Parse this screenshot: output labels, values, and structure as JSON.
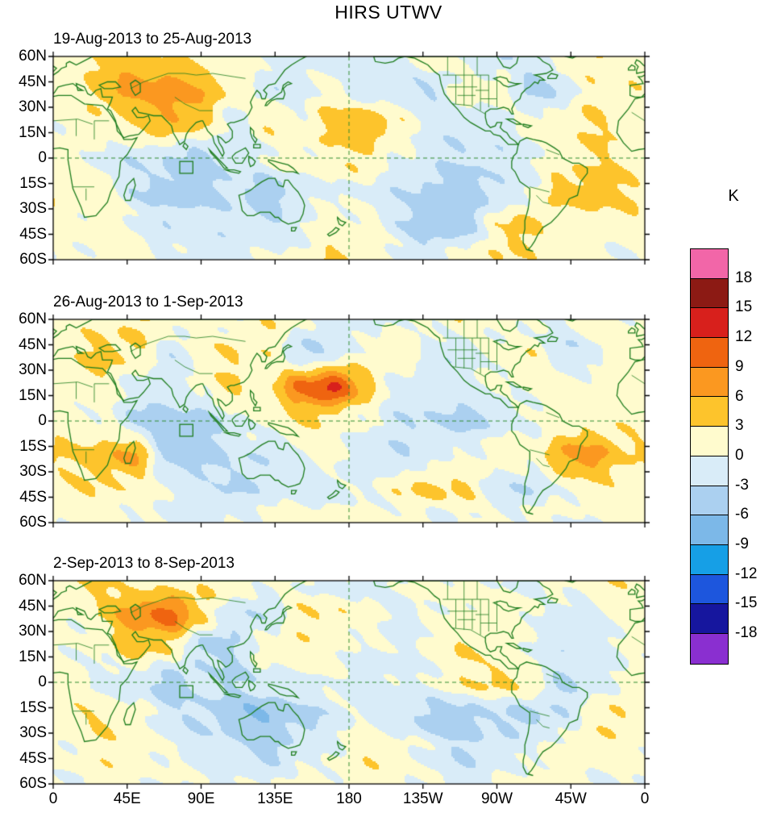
{
  "title": "HIRS UTWV",
  "colorbar": {
    "label": "K",
    "tick_labels": [
      "18",
      "15",
      "12",
      "9",
      "6",
      "3",
      "0",
      "-3",
      "-6",
      "-9",
      "-12",
      "-15",
      "-18"
    ]
  },
  "chart_data": {
    "type": "heatmap",
    "subtype": "filled-contour-anomaly-maps",
    "title": "HIRS UTWV",
    "units": "K",
    "projection": "cylindrical equidistant, 60S-60N, 0E-360E",
    "x_ticks": [
      "0",
      "45E",
      "90E",
      "135E",
      "180",
      "135W",
      "90W",
      "45W",
      "0"
    ],
    "y_ticks": [
      "60N",
      "45N",
      "30N",
      "15N",
      "0",
      "15S",
      "30S",
      "45S",
      "60S"
    ],
    "levels": [
      -18,
      -15,
      -12,
      -9,
      -6,
      -3,
      0,
      3,
      6,
      9,
      12,
      15,
      18
    ],
    "colors_low_to_high": [
      "#8a2fd0",
      "#16169e",
      "#1d56dd",
      "#169fe6",
      "#7cb8e8",
      "#abd0f0",
      "#d9ecf8",
      "#fffbce",
      "#fdc42c",
      "#fb9820",
      "#ef6410",
      "#d8201c",
      "#8c1a14",
      "#f266a8"
    ],
    "coast_color": "#1e7d1e",
    "reference_lines": {
      "equator_dashed": true,
      "dateline_dashed": true
    },
    "roi_box": {
      "lon_min": 77,
      "lon_max": 85,
      "lat_min": -9,
      "lat_max": -2
    },
    "lon_grid": [
      10,
      30,
      50,
      70,
      90,
      110,
      130,
      150,
      170,
      190,
      210,
      230,
      250,
      270,
      290,
      310,
      330,
      350
    ],
    "lat_grid": [
      60,
      40,
      20,
      0,
      -20,
      -40,
      -60
    ],
    "panels": [
      {
        "title": "19-Aug-2013 to 25-Aug-2013",
        "values": [
          [
            2,
            4,
            5,
            3,
            2,
            1,
            0,
            -1,
            -2,
            -2,
            -1,
            2,
            0,
            -3,
            -2,
            2,
            3,
            1
          ],
          [
            1,
            5,
            7,
            8,
            6,
            2,
            -2,
            -1,
            1,
            -1,
            -2,
            -3,
            1,
            2,
            -4,
            -2,
            2,
            2
          ],
          [
            0,
            2,
            3,
            6,
            3,
            -1,
            2,
            1,
            4,
            6,
            2,
            -1,
            -2,
            -1,
            1,
            2,
            3,
            2
          ],
          [
            1,
            -1,
            -2,
            -3,
            -4,
            -2,
            0,
            1,
            2,
            3,
            0,
            -2,
            -3,
            -2,
            -1,
            2,
            3,
            2
          ],
          [
            2,
            1,
            -2,
            -5,
            -4,
            -3,
            -4,
            -2,
            0,
            -1,
            -2,
            -4,
            -5,
            -3,
            0,
            4,
            5,
            3
          ],
          [
            1,
            2,
            0,
            -2,
            -1,
            -2,
            -3,
            -1,
            2,
            1,
            -2,
            -5,
            -4,
            2,
            4,
            1,
            2,
            2
          ],
          [
            0,
            1,
            1,
            0,
            -1,
            -1,
            0,
            1,
            3,
            2,
            0,
            -1,
            1,
            3,
            2,
            1,
            0,
            0
          ]
        ]
      },
      {
        "title": "26-Aug-2013 to 1-Sep-2013",
        "values": [
          [
            1,
            2,
            3,
            2,
            1,
            0,
            2,
            1,
            -2,
            -1,
            0,
            1,
            2,
            1,
            -1,
            0,
            1,
            1
          ],
          [
            2,
            4,
            3,
            -2,
            1,
            3,
            2,
            -3,
            -2,
            1,
            2,
            -1,
            -2,
            1,
            2,
            -3,
            -1,
            2
          ],
          [
            1,
            2,
            -1,
            -2,
            1,
            3,
            2,
            9,
            13,
            4,
            -1,
            -2,
            -1,
            0,
            1,
            2,
            1,
            1
          ],
          [
            2,
            0,
            -3,
            -5,
            -4,
            -1,
            1,
            3,
            2,
            0,
            -2,
            -3,
            -4,
            -2,
            0,
            1,
            2,
            2
          ],
          [
            3,
            5,
            6,
            -4,
            -5,
            -2,
            -3,
            -1,
            1,
            -2,
            -3,
            -1,
            0,
            2,
            1,
            6,
            7,
            3
          ],
          [
            2,
            3,
            2,
            0,
            -2,
            -3,
            -2,
            -1,
            -2,
            0,
            2,
            4,
            3,
            -2,
            -3,
            1,
            2,
            2
          ],
          [
            1,
            1,
            0,
            -1,
            -1,
            0,
            1,
            1,
            2,
            1,
            0,
            -1,
            0,
            1,
            1,
            0,
            0,
            1
          ]
        ]
      },
      {
        "title": "2-Sep-2013 to 8-Sep-2013",
        "values": [
          [
            2,
            3,
            2,
            1,
            3,
            2,
            1,
            0,
            -1,
            -2,
            0,
            1,
            1,
            0,
            -1,
            1,
            2,
            2
          ],
          [
            1,
            3,
            8,
            10,
            4,
            -3,
            -2,
            2,
            3,
            1,
            -1,
            0,
            1,
            2,
            1,
            -2,
            0,
            1
          ],
          [
            0,
            1,
            4,
            3,
            -4,
            -3,
            1,
            2,
            1,
            0,
            -1,
            1,
            3,
            2,
            0,
            -2,
            -1,
            0
          ],
          [
            1,
            -1,
            -2,
            -4,
            -2,
            -3,
            -2,
            -1,
            0,
            -2,
            -1,
            0,
            2,
            4,
            2,
            -3,
            -2,
            1
          ],
          [
            2,
            3,
            1,
            -2,
            -3,
            -5,
            -6,
            -4,
            -2,
            0,
            -2,
            -4,
            -5,
            -3,
            -4,
            -2,
            2,
            3
          ],
          [
            1,
            2,
            2,
            0,
            -1,
            -3,
            -4,
            -2,
            0,
            2,
            1,
            -1,
            -3,
            -2,
            0,
            1,
            2,
            1
          ],
          [
            0,
            1,
            1,
            0,
            0,
            -1,
            0,
            1,
            1,
            2,
            1,
            0,
            -1,
            0,
            1,
            1,
            0,
            0
          ]
        ]
      }
    ]
  }
}
